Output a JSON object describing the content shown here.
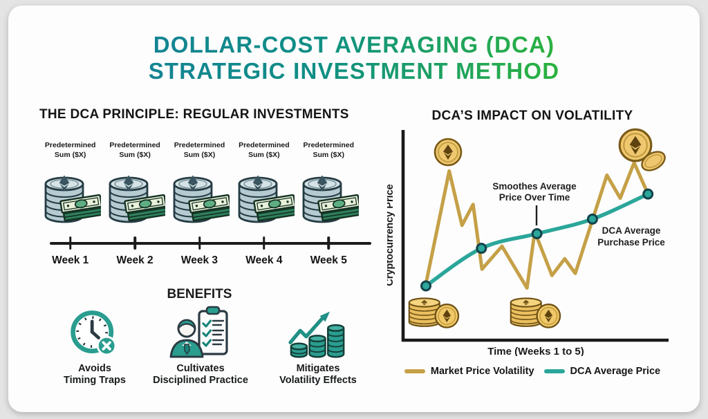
{
  "colors": {
    "title_teal": "#177D9B",
    "title_mid": "#0F8F85",
    "title_green": "#2CB33E",
    "accent_teal": "#2A9D8F",
    "gold_line": "#C5A047",
    "dca_line": "#2BA69A",
    "text_dark": "#1C1C1C",
    "page_bg": "#E4E4E4",
    "card_bg": "#FDFDFD"
  },
  "title": {
    "line1": "DOLLAR-COST AVERAGING (DCA)",
    "line2": "STRATEGIC INVESTMENT METHOD"
  },
  "principle": {
    "heading": "THE DCA PRINCIPLE: REGULAR INVESTMENTS",
    "sum_line1": "Predetermined",
    "sum_line2": "Sum ($X)",
    "icon": "eth-coin-stack-with-cash-icon",
    "weeks": [
      "Week 1",
      "Week 2",
      "Week 3",
      "Week 4",
      "Week 5"
    ]
  },
  "benefits": {
    "heading": "BENEFITS",
    "items": [
      {
        "icon": "clock-x-icon",
        "line1": "Avoids",
        "line2": "Timing Traps"
      },
      {
        "icon": "person-checklist-icon",
        "line1": "Cultivates",
        "line2": "Disciplined Practice"
      },
      {
        "icon": "growth-arrow-coins-icon",
        "line1": "Mitigates",
        "line2": "Volatility Effects"
      }
    ]
  },
  "chart": {
    "heading": "DCA’S IMPACT ON VOLATILITY"
  },
  "chart_data": {
    "type": "line",
    "title": "DCA’S IMPACT ON VOLATILITY",
    "xlabel": "Time (Weeks 1 to 5)",
    "ylabel": "Cryptocurrency Price",
    "x_range_weeks": [
      1,
      5
    ],
    "ylim": [
      0,
      100
    ],
    "grid": false,
    "legend_position": "bottom",
    "series": [
      {
        "name": "Market Price Volatility",
        "color": "#C5A047",
        "marker": false,
        "smooth": false,
        "points": [
          [
            1.0,
            27
          ],
          [
            1.42,
            81
          ],
          [
            1.65,
            55
          ],
          [
            1.85,
            65
          ],
          [
            2.01,
            34
          ],
          [
            2.37,
            45
          ],
          [
            2.82,
            25
          ],
          [
            2.96,
            52
          ],
          [
            3.27,
            31
          ],
          [
            3.5,
            39
          ],
          [
            3.69,
            32
          ],
          [
            4.26,
            79
          ],
          [
            4.5,
            68
          ],
          [
            4.75,
            85
          ],
          [
            5.0,
            70
          ]
        ]
      },
      {
        "name": "DCA Average Price",
        "color": "#2BA69A",
        "marker": true,
        "smooth": true,
        "points": [
          [
            1,
            26
          ],
          [
            2,
            44
          ],
          [
            3,
            51
          ],
          [
            4,
            58
          ],
          [
            5,
            70
          ]
        ]
      }
    ],
    "annotations": [
      {
        "lines": [
          "Smoothes Average",
          "Price Over Time"
        ],
        "target_week": 3
      },
      {
        "lines": [
          "DCA Average",
          "Purchase Price"
        ]
      }
    ]
  }
}
